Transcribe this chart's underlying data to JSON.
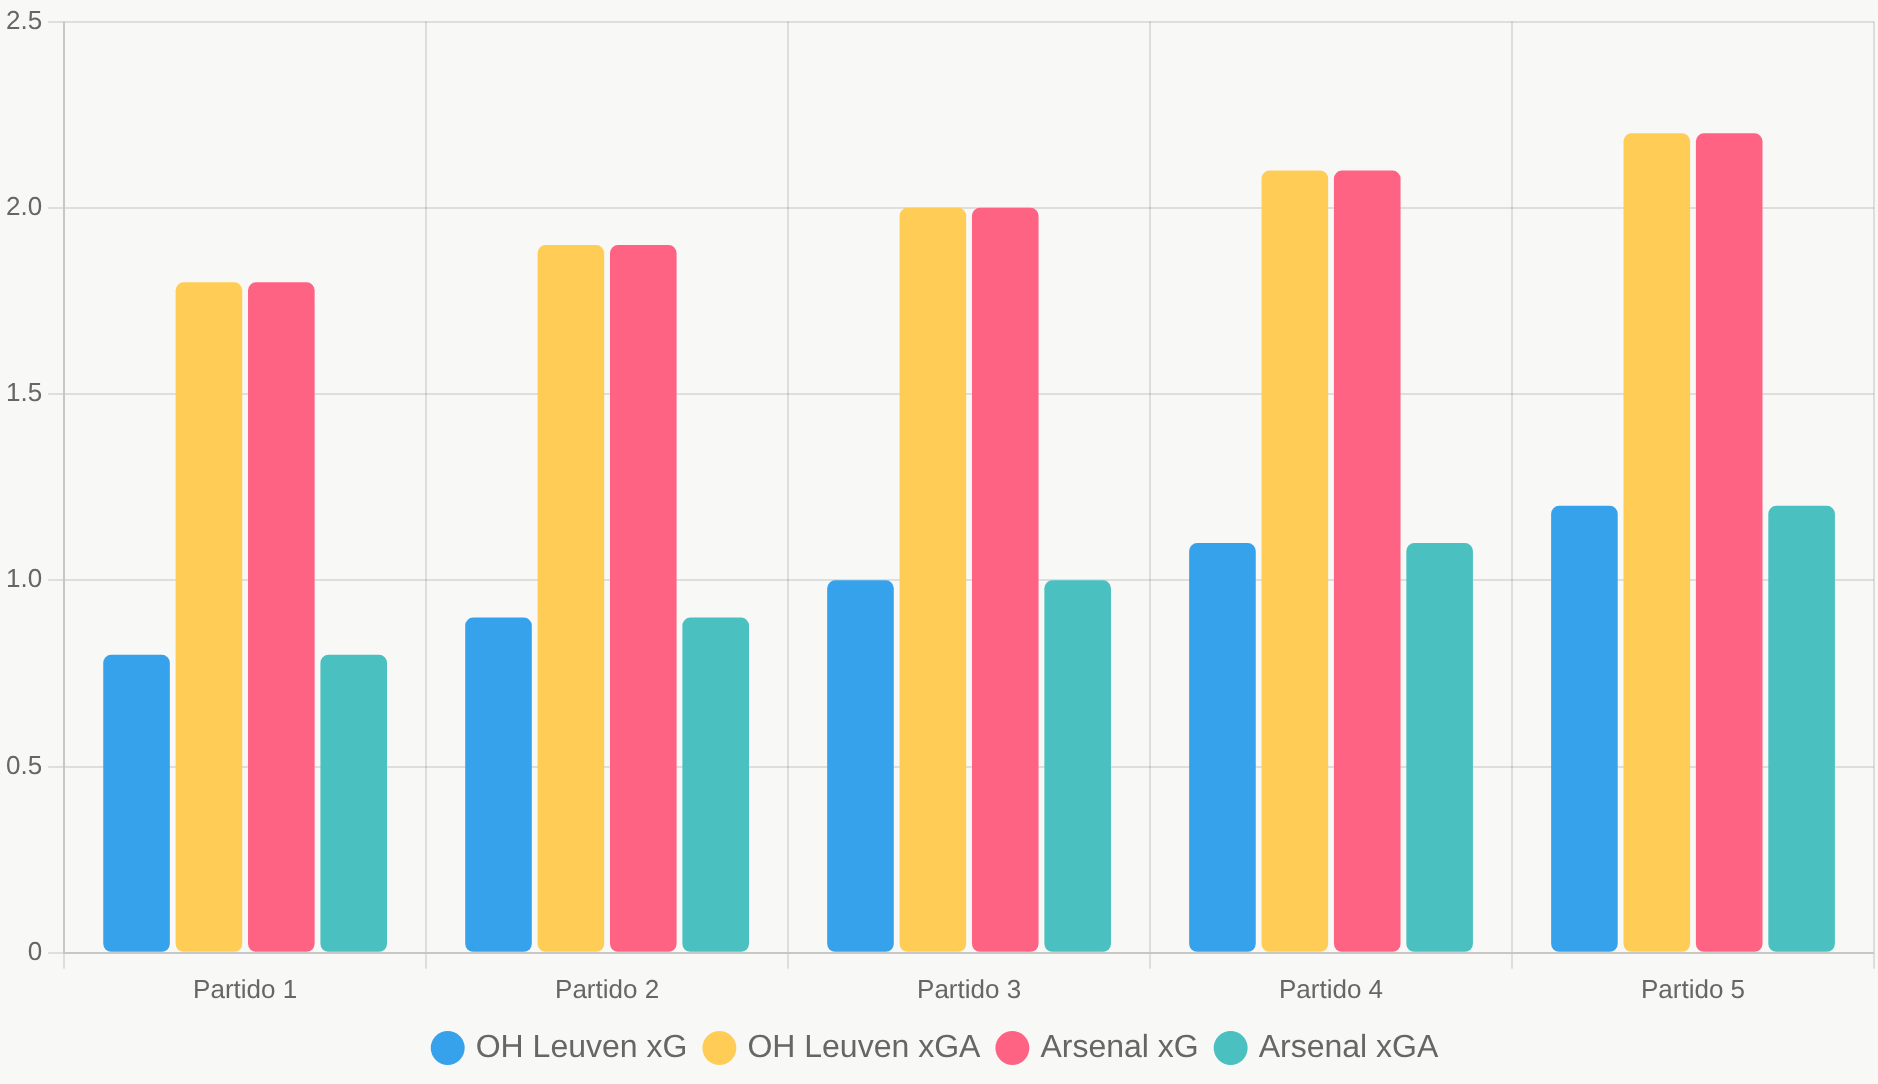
{
  "chart_data": {
    "type": "bar",
    "categories": [
      "Partido 1",
      "Partido 2",
      "Partido 3",
      "Partido 4",
      "Partido 5"
    ],
    "series": [
      {
        "name": "OH Leuven xG",
        "color": "#36a2eb",
        "values": [
          0.8,
          0.9,
          1.0,
          1.1,
          1.2
        ]
      },
      {
        "name": "OH Leuven xGA",
        "color": "#ffcd56",
        "values": [
          1.8,
          1.9,
          2.0,
          2.1,
          2.2
        ]
      },
      {
        "name": "Arsenal xG",
        "color": "#ff6384",
        "values": [
          1.8,
          1.9,
          2.0,
          2.1,
          2.2
        ]
      },
      {
        "name": "Arsenal xGA",
        "color": "#4bc0c0",
        "values": [
          0.8,
          0.9,
          1.0,
          1.1,
          1.2
        ]
      }
    ],
    "ylim": [
      0,
      2.5
    ],
    "yticks": [
      0,
      {
        "value": 0.5,
        "label": "0.5"
      },
      {
        "value": 1,
        "label": "1.0"
      },
      {
        "value": 1.5,
        "label": "1.5"
      },
      {
        "value": 2,
        "label": "2.0"
      },
      {
        "value": 2.5,
        "label": "2.5"
      }
    ],
    "grid": true,
    "legend": "bottom"
  }
}
